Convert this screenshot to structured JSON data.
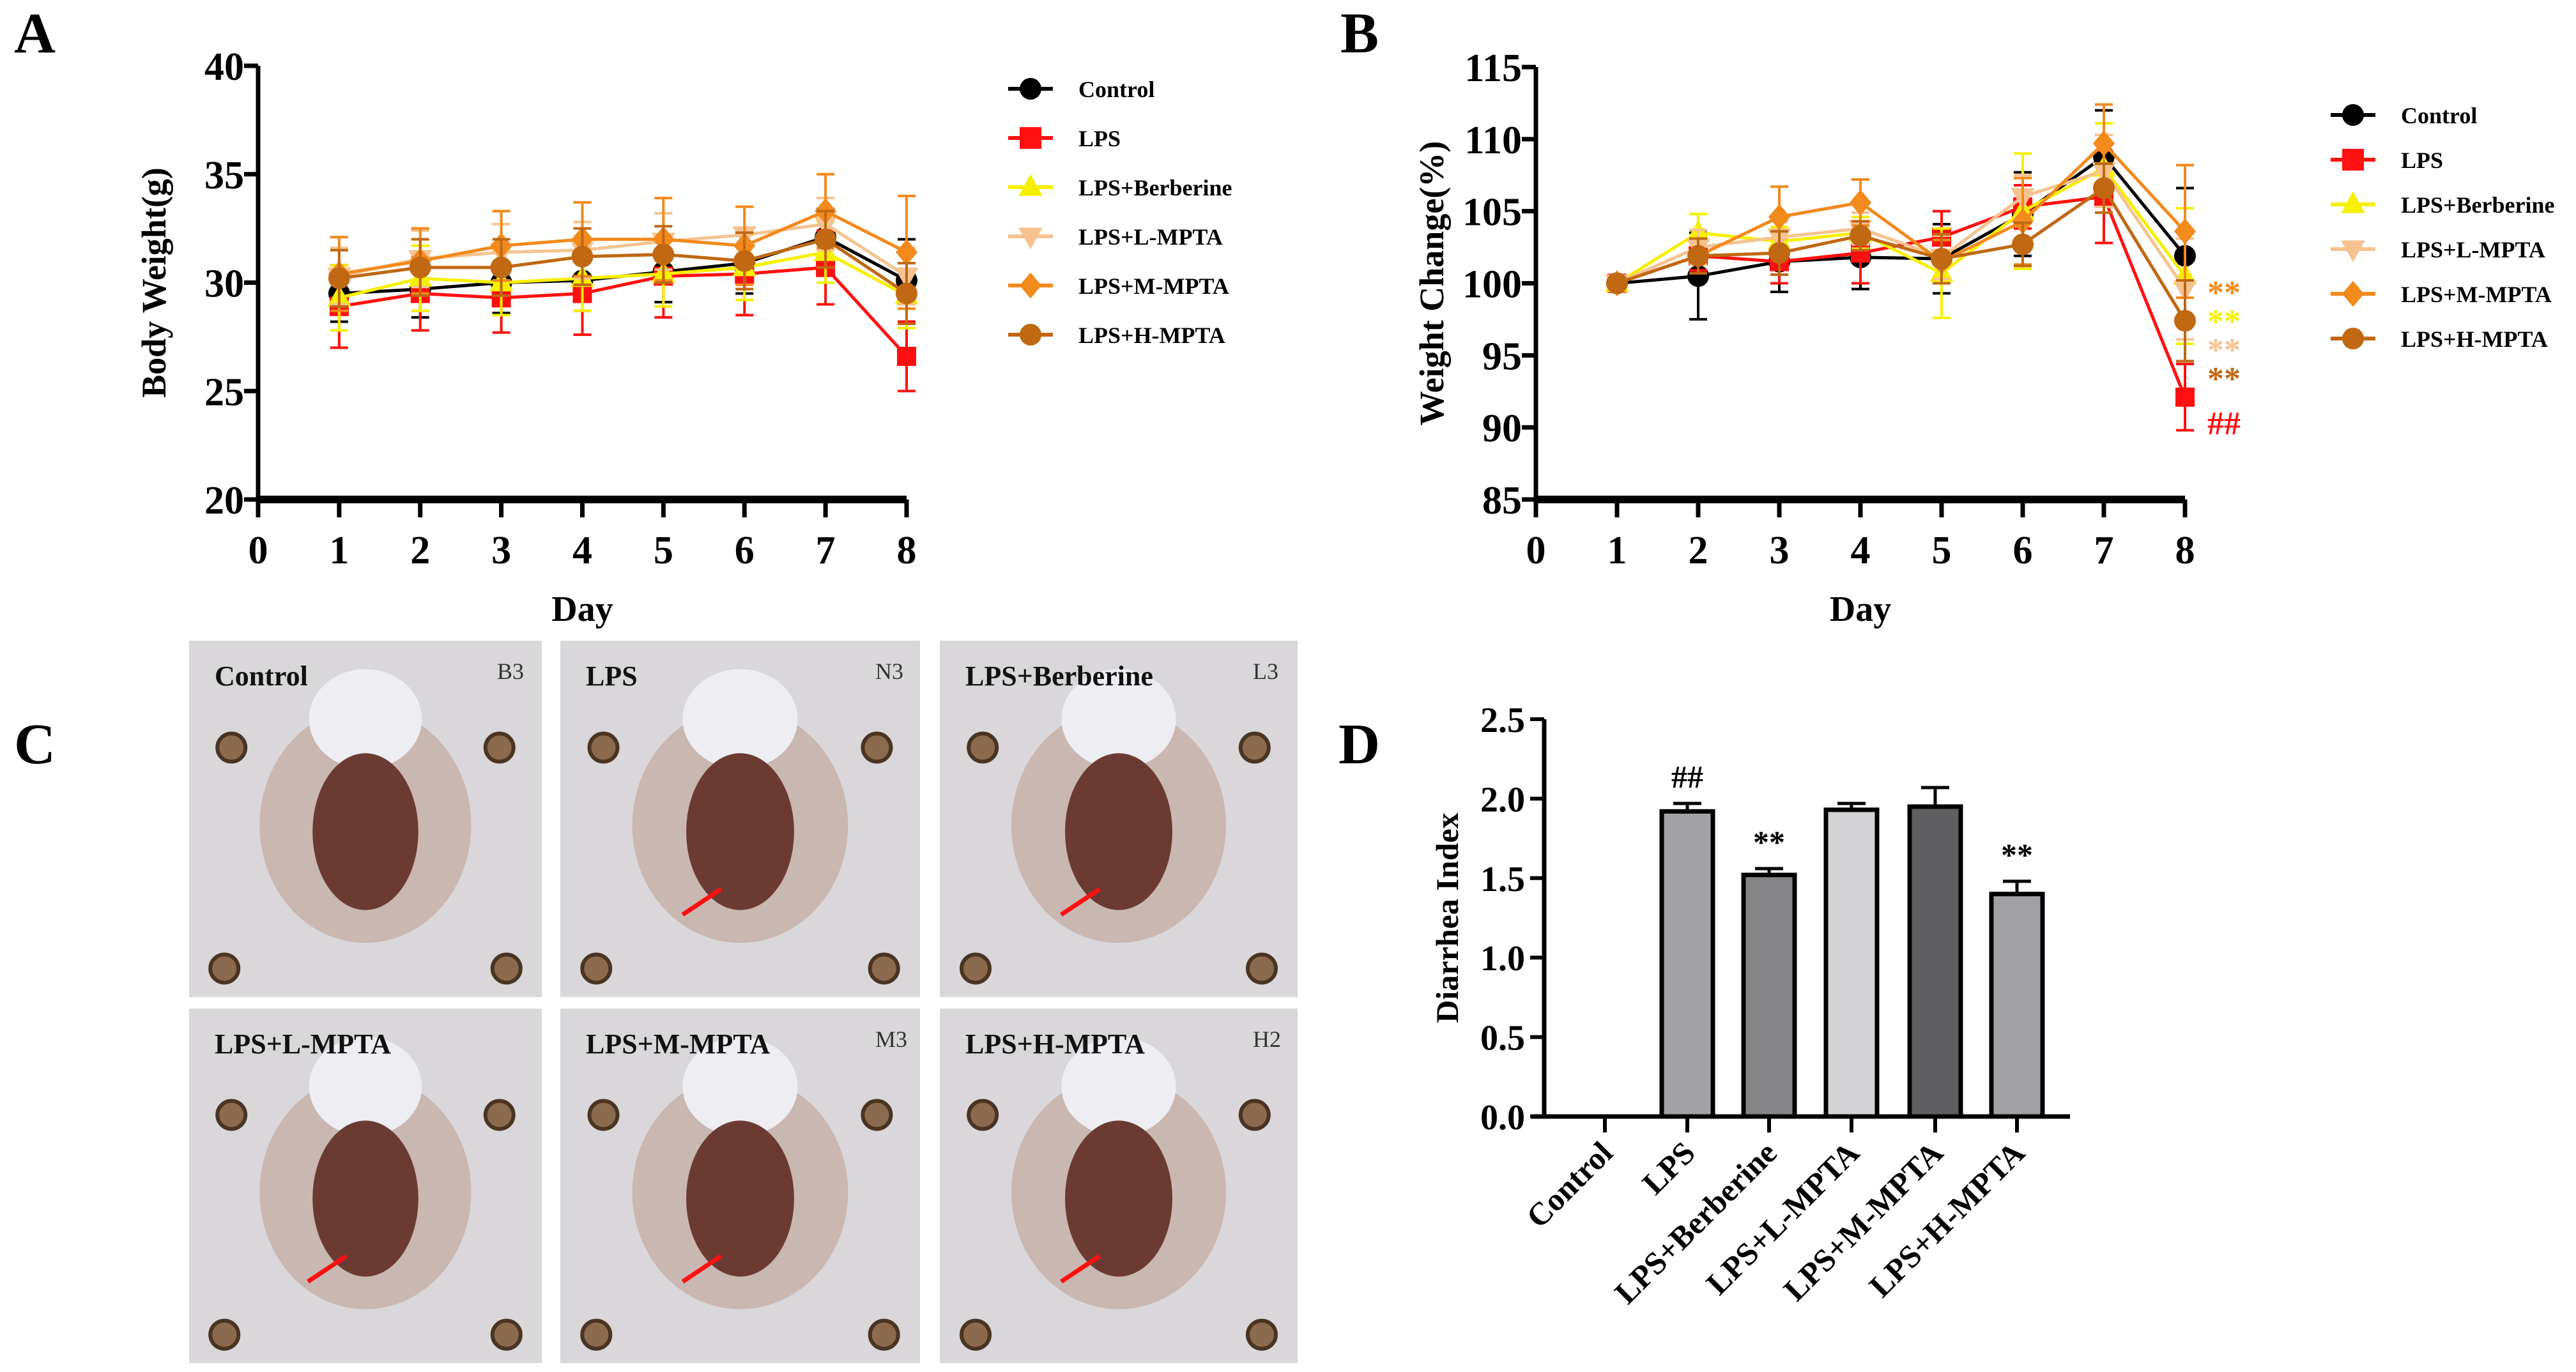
{
  "panel_labels": {
    "a": "A",
    "b": "B",
    "c": "C",
    "d": "D"
  },
  "series_style": [
    {
      "name": "Control",
      "color": "#000000",
      "marker": "circle"
    },
    {
      "name": "LPS",
      "color": "#ff1010",
      "marker": "square"
    },
    {
      "name": "LPS+Berberine",
      "color": "#f7ef00",
      "marker": "triangle-up"
    },
    {
      "name": "LPS+L-MPTA",
      "color": "#f6c390",
      "marker": "triangle-down"
    },
    {
      "name": "LPS+M-MPTA",
      "color": "#f28a1c",
      "marker": "diamond"
    },
    {
      "name": "LPS+H-MPTA",
      "color": "#c06812",
      "marker": "circle"
    }
  ],
  "chart_data": [
    {
      "type": "line",
      "id": "A",
      "xlabel": "Day",
      "ylabel": "Body Weight(g)",
      "xlim": [
        0,
        8
      ],
      "ylim": [
        20,
        40
      ],
      "xticks": [
        "0",
        "1",
        "2",
        "3",
        "4",
        "5",
        "6",
        "7",
        "8"
      ],
      "yticks": [
        "20",
        "25",
        "30",
        "35",
        "40"
      ],
      "legend_position": "right",
      "x": [
        1,
        2,
        3,
        4,
        5,
        6,
        7,
        8
      ],
      "series": [
        {
          "name": "Control",
          "values": [
            29.5,
            29.7,
            30.0,
            30.1,
            30.5,
            30.9,
            32.1,
            30.1
          ],
          "err": [
            1.3,
            1.3,
            1.4,
            1.4,
            1.4,
            1.4,
            1.3,
            1.9
          ]
        },
        {
          "name": "LPS",
          "values": [
            28.9,
            29.5,
            29.3,
            29.5,
            30.3,
            30.4,
            30.7,
            26.6
          ],
          "err": [
            1.9,
            1.7,
            1.6,
            1.9,
            1.9,
            1.9,
            1.7,
            1.6
          ]
        },
        {
          "name": "LPS+Berberine",
          "values": [
            29.3,
            30.2,
            30.0,
            30.2,
            30.4,
            30.7,
            31.4,
            29.4
          ],
          "err": [
            1.5,
            1.5,
            1.5,
            1.5,
            1.5,
            1.5,
            1.4,
            1.5
          ]
        },
        {
          "name": "LPS+L-MPTA",
          "values": [
            30.3,
            31.1,
            31.4,
            31.5,
            31.9,
            32.2,
            32.7,
            30.3
          ],
          "err": [
            1.3,
            1.3,
            1.3,
            1.3,
            1.3,
            1.3,
            1.2,
            1.3
          ]
        },
        {
          "name": "LPS+M-MPTA",
          "values": [
            30.4,
            31.0,
            31.7,
            32.0,
            32.0,
            31.7,
            33.3,
            31.4
          ],
          "err": [
            1.7,
            1.5,
            1.6,
            1.7,
            1.9,
            1.8,
            1.7,
            2.6
          ]
        },
        {
          "name": "LPS+H-MPTA",
          "values": [
            30.2,
            30.7,
            30.7,
            31.2,
            31.3,
            31.0,
            32.0,
            29.5
          ],
          "err": [
            1.3,
            1.3,
            1.3,
            1.3,
            1.3,
            1.3,
            1.3,
            1.4
          ]
        }
      ]
    },
    {
      "type": "line",
      "id": "B",
      "xlabel": "Day",
      "ylabel": "Weight Change(%)",
      "xlim": [
        0,
        8
      ],
      "ylim": [
        85,
        115
      ],
      "xticks": [
        "0",
        "1",
        "2",
        "3",
        "4",
        "5",
        "6",
        "7",
        "8"
      ],
      "yticks": [
        "85",
        "90",
        "95",
        "100",
        "105",
        "110",
        "115"
      ],
      "legend_position": "right",
      "x": [
        1,
        2,
        3,
        4,
        5,
        6,
        7,
        8
      ],
      "series": [
        {
          "name": "Control",
          "values": [
            100,
            100.5,
            101.5,
            101.8,
            101.7,
            104.8,
            108.8,
            101.9
          ],
          "err": [
            0.3,
            3.0,
            2.1,
            2.2,
            2.4,
            2.9,
            3.2,
            4.7
          ]
        },
        {
          "name": "LPS",
          "values": [
            100,
            101.9,
            101.5,
            102.1,
            103.2,
            105.3,
            106.0,
            92.1
          ],
          "err": [
            0.4,
            1.0,
            1.5,
            2.1,
            1.8,
            1.5,
            3.2,
            2.3
          ]
        },
        {
          "name": "LPS+Berberine",
          "values": [
            100,
            103.5,
            102.9,
            103.5,
            100.7,
            105.0,
            108.0,
            100.5
          ],
          "err": [
            0.3,
            1.3,
            1.0,
            1.1,
            3.1,
            4.0,
            3.1,
            4.7
          ]
        },
        {
          "name": "LPS+L-MPTA",
          "values": [
            100,
            102.5,
            103.2,
            103.8,
            101.8,
            106.0,
            107.8,
            99.6
          ],
          "err": [
            0.3,
            1.2,
            1.1,
            1.1,
            1.5,
            1.5,
            2.5,
            3.5
          ]
        },
        {
          "name": "LPS+M-MPTA",
          "values": [
            100,
            101.9,
            104.6,
            105.6,
            101.5,
            104.3,
            109.7,
            103.6
          ],
          "err": [
            0.3,
            1.2,
            2.1,
            1.6,
            1.5,
            3.0,
            2.7,
            4.6
          ]
        },
        {
          "name": "LPS+H-MPTA",
          "values": [
            100,
            101.9,
            102.1,
            103.3,
            101.7,
            102.7,
            106.6,
            97.4
          ],
          "err": [
            0.3,
            1.2,
            1.5,
            1.0,
            1.7,
            1.5,
            1.7,
            2.8
          ]
        }
      ],
      "annotations": [
        {
          "text": "**",
          "color": "#f28a1c"
        },
        {
          "text": "**",
          "color": "#f7ef00"
        },
        {
          "text": "**",
          "color": "#f6c390"
        },
        {
          "text": "**",
          "color": "#c06812"
        },
        {
          "text": "##",
          "color": "#ff1010"
        }
      ]
    },
    {
      "type": "bar",
      "id": "D",
      "xlabel": "",
      "ylabel": "Diarrhea Index",
      "ylim": [
        0,
        2.5
      ],
      "yticks": [
        "0.0",
        "0.5",
        "1.0",
        "1.5",
        "2.0",
        "2.5"
      ],
      "categories": [
        "Control",
        "LPS",
        "LPS+Berberine",
        "LPS+L-MPTA",
        "LPS+M-MPTA",
        "LPS+H-MPTA"
      ],
      "values": [
        0,
        1.92,
        1.52,
        1.93,
        1.95,
        1.4
      ],
      "err": [
        0,
        0.05,
        0.04,
        0.04,
        0.12,
        0.08
      ],
      "colors": [
        "#a2a2a6",
        "#a2a2a6",
        "#858588",
        "#d3d3d6",
        "#5f5f62",
        "#a1a1a5"
      ],
      "labels": [
        "",
        "##",
        "**",
        "",
        "",
        "**"
      ]
    }
  ],
  "photos": [
    {
      "label": "Control",
      "tag": "B3"
    },
    {
      "label": "LPS",
      "tag": "N3"
    },
    {
      "label": "LPS+Berberine",
      "tag": "L3"
    },
    {
      "label": "LPS+L-MPTA",
      "tag": ""
    },
    {
      "label": "LPS+M-MPTA",
      "tag": "M3"
    },
    {
      "label": "LPS+H-MPTA",
      "tag": "H2"
    }
  ]
}
